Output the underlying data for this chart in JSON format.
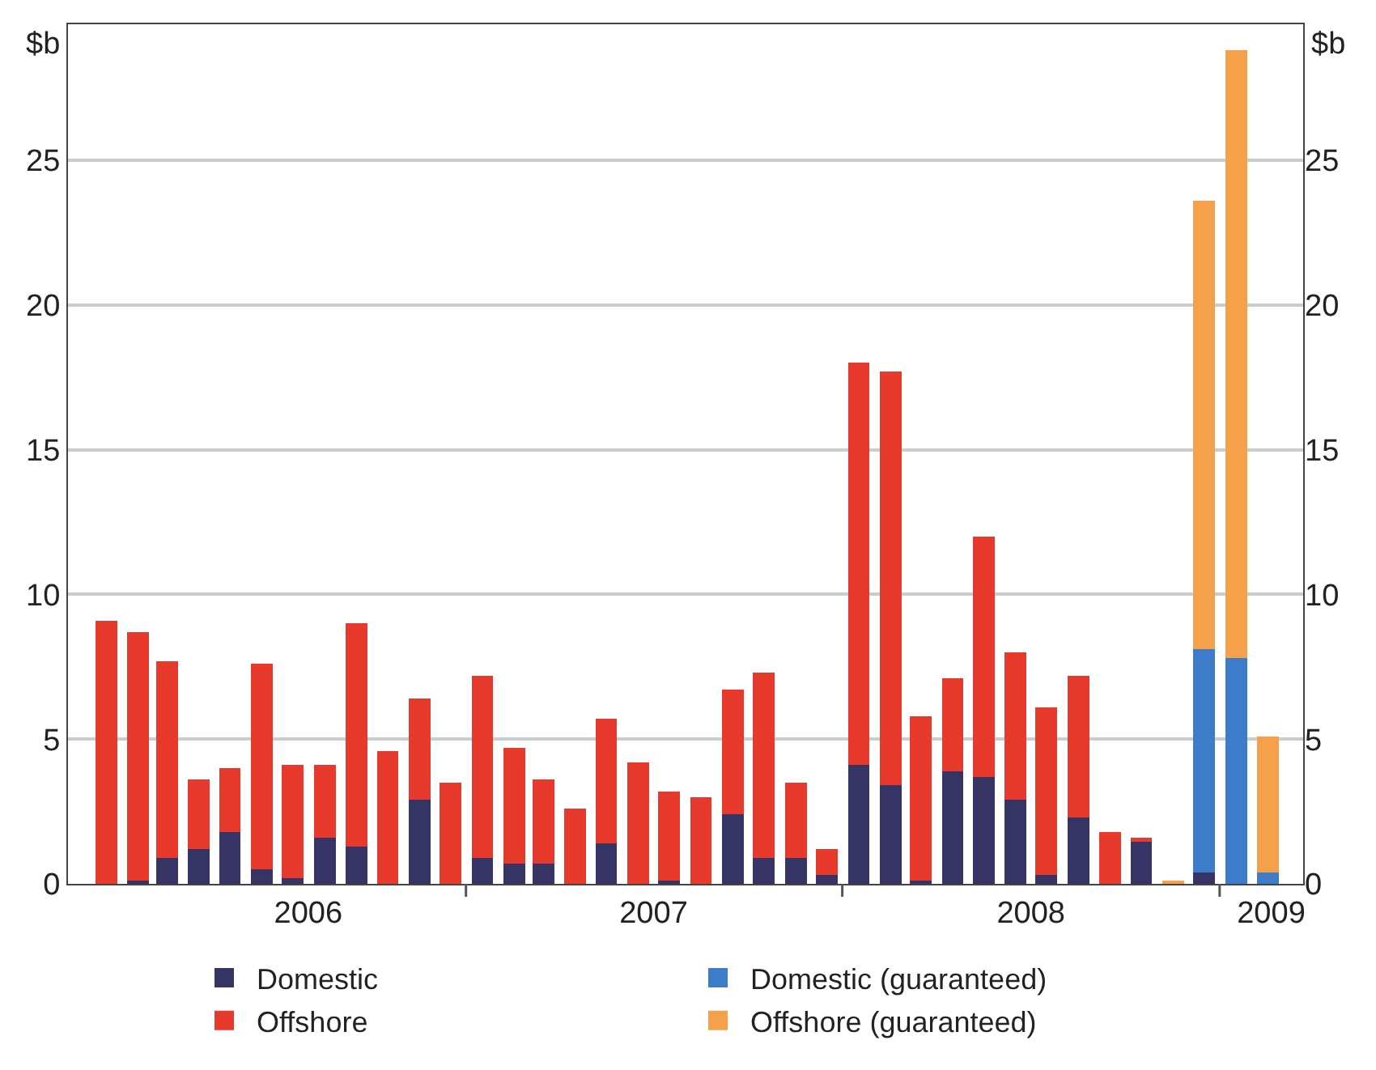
{
  "chart_data": {
    "type": "bar",
    "stacked": true,
    "ylabel": "$b",
    "y2label": "$b",
    "x": [
      "2006-01",
      "2006-02",
      "2006-03",
      "2006-04",
      "2006-05",
      "2006-06",
      "2006-07",
      "2006-08",
      "2006-09",
      "2006-10",
      "2006-11",
      "2006-12",
      "2007-01",
      "2007-02",
      "2007-03",
      "2007-04",
      "2007-05",
      "2007-06",
      "2007-07",
      "2007-08",
      "2007-09",
      "2007-10",
      "2007-11",
      "2007-12",
      "2008-01",
      "2008-02",
      "2008-03",
      "2008-04",
      "2008-05",
      "2008-06",
      "2008-07",
      "2008-08",
      "2008-09",
      "2008-10",
      "2008-11",
      "2008-12",
      "2009-01",
      "2009-02"
    ],
    "series": [
      {
        "name": "Domestic",
        "color": "#363464",
        "values": [
          0,
          0.1,
          0.9,
          1.2,
          1.8,
          0.5,
          0.2,
          1.6,
          1.3,
          0,
          2.9,
          0,
          0.9,
          0.7,
          0.7,
          0,
          1.4,
          0,
          0.1,
          0,
          2.4,
          0.9,
          0.9,
          0.3,
          4.1,
          3.4,
          0.1,
          3.9,
          3.7,
          2.9,
          0.3,
          2.3,
          0,
          1.5,
          0,
          0.4,
          0,
          0
        ]
      },
      {
        "name": "Domestic (guaranteed)",
        "color": "#3d7cc9",
        "values": [
          0,
          0,
          0,
          0,
          0,
          0,
          0,
          0,
          0,
          0,
          0,
          0,
          0,
          0,
          0,
          0,
          0,
          0,
          0,
          0,
          0,
          0,
          0,
          0,
          0,
          0,
          0,
          0,
          0,
          0,
          0,
          0,
          0,
          0,
          0,
          7.7,
          7.8,
          0.4
        ]
      },
      {
        "name": "Offshore",
        "color": "#e8392d",
        "values": [
          9.1,
          8.6,
          6.8,
          2.4,
          2.2,
          7.1,
          3.9,
          2.5,
          7.7,
          4.6,
          3.5,
          3.5,
          6.3,
          4.0,
          2.9,
          2.6,
          4.3,
          4.2,
          3.1,
          3.0,
          4.3,
          6.4,
          2.6,
          0.9,
          13.9,
          14.3,
          5.7,
          3.2,
          8.3,
          5.1,
          5.8,
          4.9,
          1.8,
          0.1,
          0,
          0,
          0,
          0
        ]
      },
      {
        "name": "Offshore (guaranteed)",
        "color": "#f5a04a",
        "values": [
          0,
          0,
          0,
          0,
          0,
          0,
          0,
          0,
          0,
          0,
          0,
          0,
          0,
          0,
          0,
          0,
          0,
          0,
          0,
          0,
          0,
          0,
          0,
          0,
          0,
          0,
          0,
          0,
          0,
          0,
          0,
          0,
          0,
          0,
          0.1,
          15.5,
          21.0,
          4.7
        ]
      }
    ],
    "xlim": [
      "2005-11-25",
      "2009-03-07"
    ],
    "xticks": [
      {
        "value": "2006-07-16",
        "label": "2006"
      },
      {
        "value": "2006-12-16",
        "label": null
      },
      {
        "value": "2007-06-16",
        "label": "2007"
      },
      {
        "value": "2007-12-16",
        "label": null
      },
      {
        "value": "2008-06-16",
        "label": "2008"
      },
      {
        "value": "2008-12-16",
        "label": null
      },
      {
        "value": "2009-02-04",
        "label": "2009"
      }
    ],
    "ylim": [
      0,
      29.7
    ],
    "yticks": [
      0,
      5,
      10,
      15,
      20,
      25
    ],
    "y2lim": [
      0,
      29.7
    ],
    "y2ticks": [
      0,
      5,
      10,
      15,
      20,
      25
    ],
    "grid": "y",
    "legend": "bottom"
  }
}
